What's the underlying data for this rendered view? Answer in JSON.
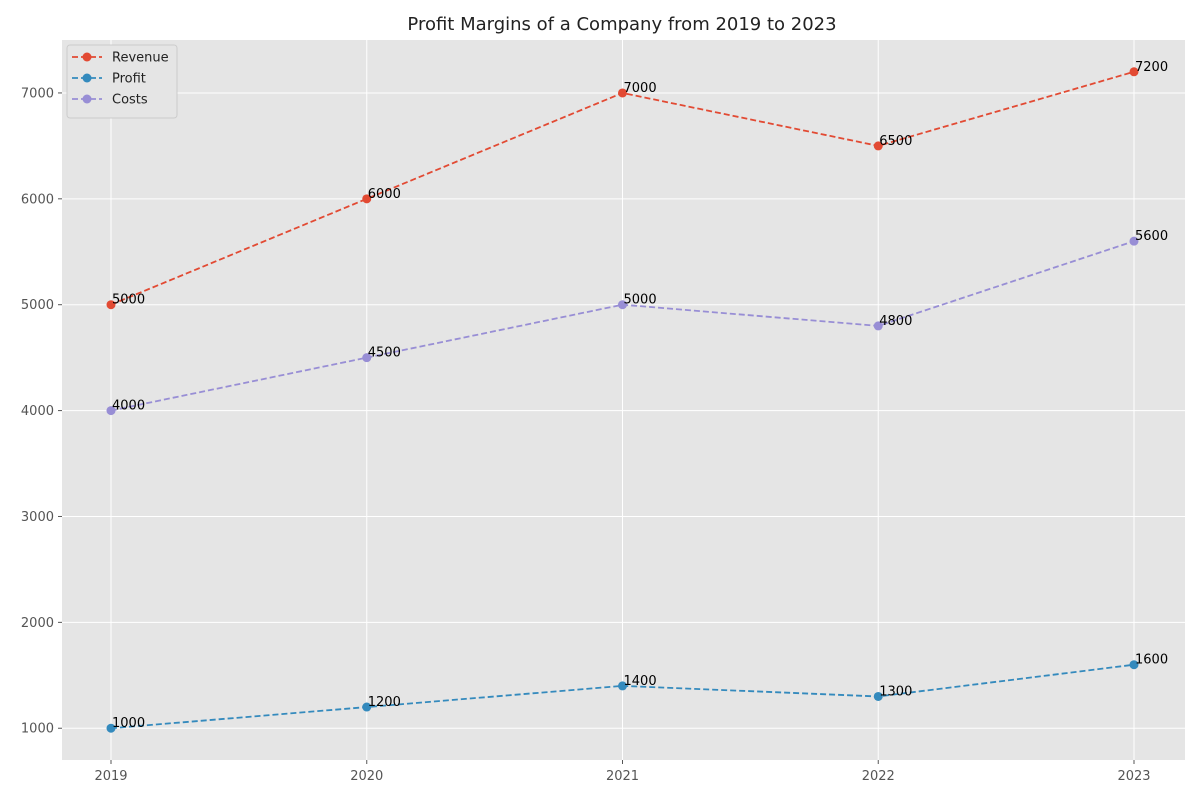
{
  "chart_data": {
    "type": "line",
    "title": "Profit Margins of a Company from 2019 to 2023",
    "xlabel": "",
    "ylabel": "",
    "categories": [
      "2019",
      "2020",
      "2021",
      "2022",
      "2023"
    ],
    "series": [
      {
        "name": "Revenue",
        "values": [
          5000,
          6000,
          7000,
          6500,
          7200
        ],
        "labels": [
          "5000",
          "6000",
          "7000",
          "6500",
          "7200"
        ],
        "color": "#E24A33"
      },
      {
        "name": "Profit",
        "values": [
          1000,
          1200,
          1400,
          1300,
          1600
        ],
        "labels": [
          "1000",
          "1200",
          "1400",
          "1300",
          "1600"
        ],
        "color": "#348ABD"
      },
      {
        "name": "Costs",
        "values": [
          4000,
          4500,
          5000,
          4800,
          5600
        ],
        "labels": [
          "4000",
          "4500",
          "5000",
          "4800",
          "5600"
        ],
        "color": "#988ED5"
      }
    ],
    "ylim": [
      700,
      7500
    ],
    "yticks": [
      1000,
      2000,
      3000,
      4000,
      5000,
      6000,
      7000
    ],
    "ytick_labels": [
      "1000",
      "2000",
      "3000",
      "4000",
      "5000",
      "6000",
      "7000"
    ],
    "line_style": "dashed",
    "marker": "circle",
    "grid": true,
    "legend_position": "top-left",
    "background_color": "#E5E5E5",
    "grid_color": "#FFFFFF"
  }
}
